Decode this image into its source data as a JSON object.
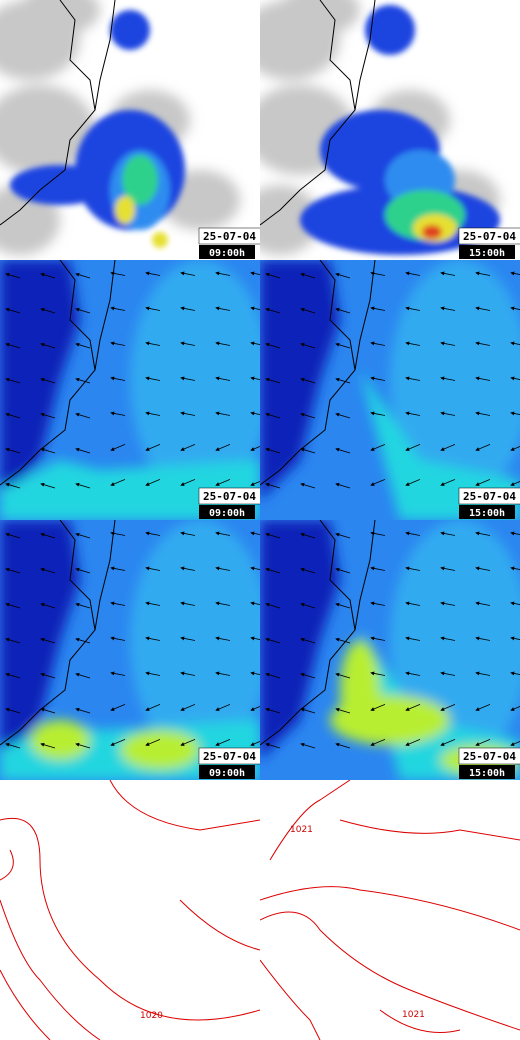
{
  "panels": [
    {
      "date": "25-07-04",
      "time": "09:00h"
    },
    {
      "date": "25-07-04",
      "time": "15:00h"
    },
    {
      "date": "25-07-04",
      "time": "09:00h"
    },
    {
      "date": "25-07-04",
      "time": "15:00h"
    },
    {
      "date": "25-07-04",
      "time": "09:00h"
    },
    {
      "date": "25-07-04",
      "time": "15:00h"
    }
  ],
  "pressure_labels": [
    "1020",
    "1021",
    "1021"
  ]
}
